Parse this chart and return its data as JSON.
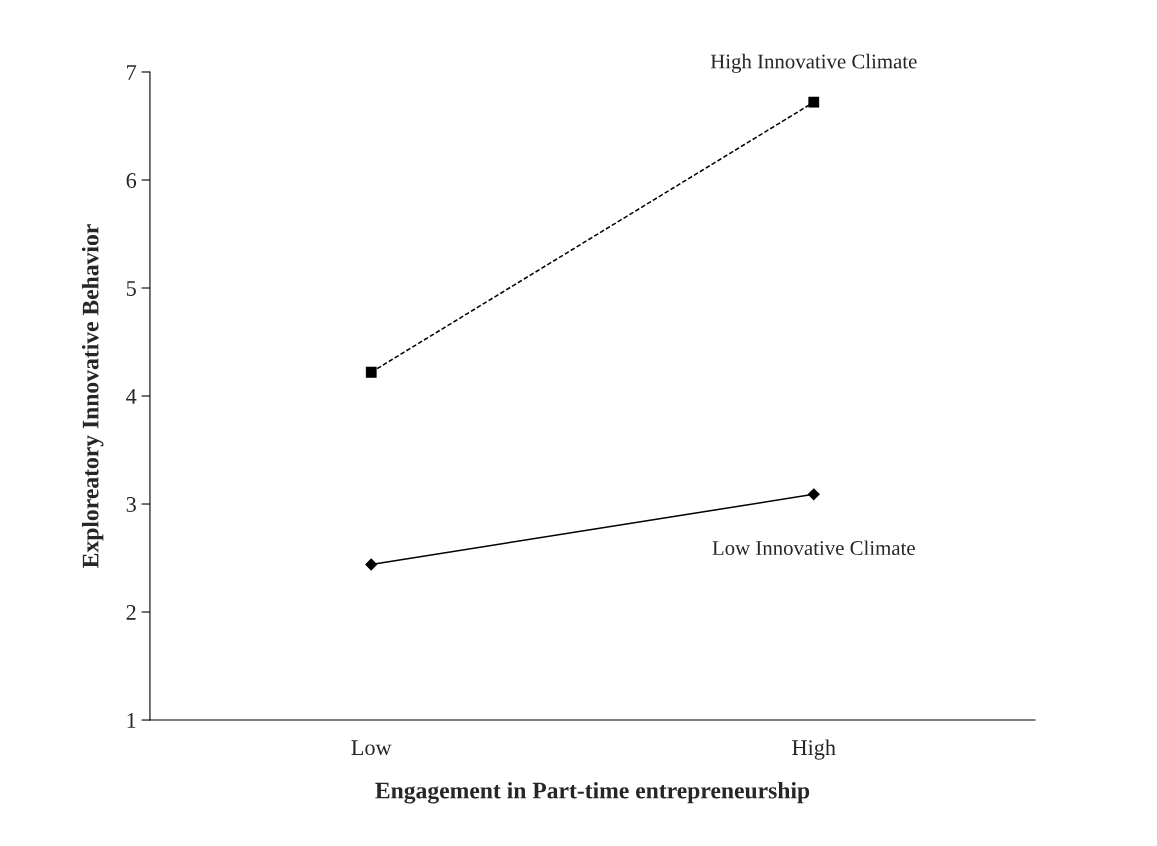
{
  "chart_data": {
    "type": "line",
    "xlabel": "Engagement in Part-time entrepreneurship",
    "ylabel": "Exploreatory Innovative Behavior",
    "categories": [
      "Low",
      "High"
    ],
    "series": [
      {
        "name": "High Innovative Climate",
        "color": "#000000",
        "values": [
          4.22,
          6.72
        ],
        "marker": "square",
        "line_style": "dashed"
      },
      {
        "name": "Low Innovative Climate",
        "color": "#000000",
        "values": [
          2.44,
          3.09
        ],
        "marker": "diamond",
        "line_style": "solid"
      }
    ],
    "ylim": [
      1,
      7
    ],
    "yticks": [
      1,
      2,
      3,
      4,
      5,
      6,
      7
    ],
    "grid": false,
    "legend": false
  }
}
